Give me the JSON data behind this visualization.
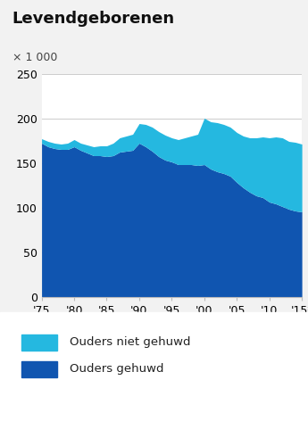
{
  "title": "Levendgeborenen",
  "unit_label": "× 1 000",
  "years": [
    1975,
    1976,
    1977,
    1978,
    1979,
    1980,
    1981,
    1982,
    1983,
    1984,
    1985,
    1986,
    1987,
    1988,
    1989,
    1990,
    1991,
    1992,
    1993,
    1994,
    1995,
    1996,
    1997,
    1998,
    1999,
    2000,
    2001,
    2002,
    2003,
    2004,
    2005,
    2006,
    2007,
    2008,
    2009,
    2010,
    2011,
    2012,
    2013,
    2014,
    2015
  ],
  "married": [
    172,
    168,
    166,
    165,
    165,
    168,
    164,
    161,
    158,
    158,
    157,
    158,
    162,
    163,
    164,
    172,
    168,
    163,
    157,
    153,
    151,
    148,
    148,
    148,
    147,
    148,
    143,
    140,
    138,
    135,
    128,
    122,
    117,
    113,
    111,
    106,
    104,
    101,
    98,
    96,
    95
  ],
  "unmarried": [
    5,
    6,
    6,
    6,
    7,
    8,
    8,
    9,
    10,
    11,
    12,
    14,
    16,
    17,
    18,
    22,
    25,
    27,
    28,
    28,
    27,
    28,
    30,
    32,
    35,
    52,
    53,
    55,
    55,
    55,
    56,
    58,
    61,
    65,
    68,
    72,
    75,
    77,
    76,
    77,
    76
  ],
  "color_married": "#1055b0",
  "color_unmarried": "#25b8e0",
  "ylim": [
    0,
    250
  ],
  "yticks": [
    0,
    50,
    100,
    150,
    200,
    250
  ],
  "xlabel_ticks": [
    "'75",
    "'80",
    "'85",
    "'90",
    "'95",
    "'00",
    "'05",
    "'10",
    "'15*"
  ],
  "xlabel_tick_positions": [
    1975,
    1980,
    1985,
    1990,
    1995,
    2000,
    2005,
    2010,
    2015
  ],
  "legend_not_married": "Ouders niet gehuwd",
  "legend_married": "Ouders gehuwd",
  "bg_color": "#f2f2f2",
  "plot_bg_color": "#ffffff",
  "title_fontsize": 13,
  "axis_fontsize": 9
}
